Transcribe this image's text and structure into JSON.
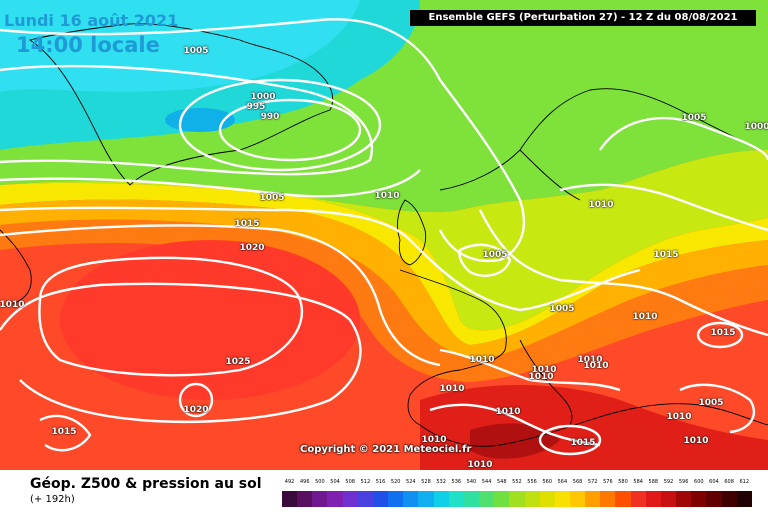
{
  "header": {
    "date": "Lundi 16 août 2021",
    "time": "14:00 locale",
    "title": "Ensemble GEFS  (Perturbation 27)  -  12 Z du 08/08/2021"
  },
  "copyright": "Copyright © 2021 Meteociel.fr",
  "footer": {
    "product": "Géop. Z500 & pression au sol",
    "lead": "(+ 192h)"
  },
  "legend": {
    "labels": [
      "492",
      "496",
      "500",
      "504",
      "508",
      "512",
      "516",
      "520",
      "524",
      "528",
      "532",
      "536",
      "540",
      "544",
      "548",
      "552",
      "556",
      "560",
      "564",
      "568",
      "572",
      "576",
      "580",
      "584",
      "588",
      "592",
      "596",
      "600",
      "604",
      "608",
      "612"
    ],
    "colors": [
      "#3a0a3a",
      "#5a1060",
      "#701890",
      "#8020b0",
      "#7030d0",
      "#4a40e0",
      "#2050e8",
      "#1070f0",
      "#1090f0",
      "#10b0f0",
      "#10d0e8",
      "#20e0c8",
      "#30e0a0",
      "#50e070",
      "#70e040",
      "#a0e020",
      "#c0e010",
      "#e0e000",
      "#f8e000",
      "#ffc800",
      "#ffa000",
      "#ff7800",
      "#ff5000",
      "#f03020",
      "#e01818",
      "#c81010",
      "#a00808",
      "#800000",
      "#600000",
      "#400000",
      "#200000"
    ]
  },
  "isobars": [
    {
      "label": "1005"
    },
    {
      "label": "1000"
    },
    {
      "label": "995"
    },
    {
      "label": "990"
    },
    {
      "label": "1005"
    },
    {
      "label": "1010"
    },
    {
      "label": "1015"
    },
    {
      "label": "1020"
    },
    {
      "label": "1010"
    },
    {
      "label": "1025"
    },
    {
      "label": "1020"
    },
    {
      "label": "1015"
    },
    {
      "label": "1005"
    },
    {
      "label": "1005"
    },
    {
      "label": "1010"
    },
    {
      "label": "1005"
    },
    {
      "label": "1000"
    },
    {
      "label": "1010"
    },
    {
      "label": "1015"
    },
    {
      "label": "1010"
    },
    {
      "label": "1015"
    },
    {
      "label": "1010"
    },
    {
      "label": "1010"
    },
    {
      "label": "1010"
    },
    {
      "label": "1010"
    },
    {
      "label": "1010"
    },
    {
      "label": "1010"
    },
    {
      "label": "1015"
    },
    {
      "label": "1010"
    },
    {
      "label": "1005"
    },
    {
      "label": "1010"
    },
    {
      "label": "1010"
    },
    {
      "label": "1010"
    }
  ]
}
